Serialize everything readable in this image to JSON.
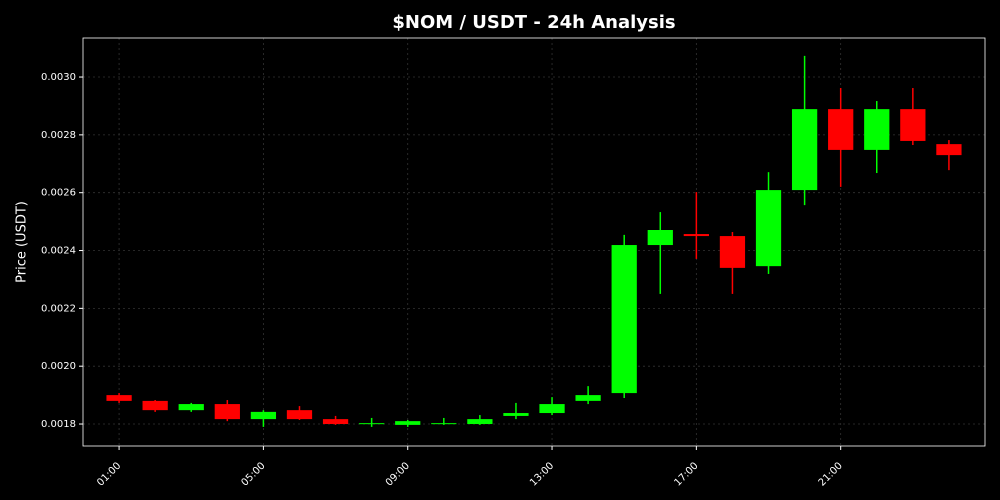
{
  "chart_data": {
    "type": "candlestick",
    "title": "$NOM / USDT - 24h Analysis",
    "y_label": "Price (USDT)",
    "x": [
      1,
      2,
      3,
      4,
      5,
      6,
      7,
      8,
      9,
      10,
      11,
      12,
      13,
      14,
      15,
      16,
      17,
      18,
      19,
      20,
      21,
      22,
      23,
      24
    ],
    "open": [
      0.0019,
      0.00188,
      0.001848,
      0.001869,
      0.001817,
      0.001848,
      0.001817,
      0.0018,
      0.001797,
      0.0018,
      0.0018,
      0.001828,
      0.001838,
      0.00188,
      0.001907,
      0.002419,
      0.002457,
      0.00245,
      0.002346,
      0.002609,
      0.002889,
      0.002748,
      0.002889,
      0.002768
    ],
    "high": [
      0.001907,
      0.001883,
      0.001873,
      0.001883,
      0.001848,
      0.001862,
      0.001828,
      0.001821,
      0.001814,
      0.001821,
      0.001831,
      0.001873,
      0.001893,
      0.001931,
      0.002454,
      0.002533,
      0.002602,
      0.002464,
      0.002671,
      0.003073,
      0.002962,
      0.002917,
      0.002962,
      0.002782
    ],
    "low": [
      0.001873,
      0.001842,
      0.001842,
      0.00181,
      0.00179,
      0.001814,
      0.001797,
      0.00179,
      0.00179,
      0.001797,
      0.001797,
      0.001817,
      0.001831,
      0.001869,
      0.00189,
      0.00225,
      0.002371,
      0.00225,
      0.002319,
      0.002557,
      0.00262,
      0.002668,
      0.002765,
      0.002678
    ],
    "close": [
      0.00188,
      0.001848,
      0.001869,
      0.001817,
      0.001842,
      0.001817,
      0.0018,
      0.001803,
      0.00181,
      0.001803,
      0.001817,
      0.001838,
      0.001869,
      0.0019,
      0.002419,
      0.002471,
      0.00245,
      0.00234,
      0.002609,
      0.002889,
      0.002748,
      0.002889,
      0.002779,
      0.00273
    ],
    "up_color": "#00ff00",
    "down_color": "#ff0000",
    "xlim": [
      0,
      25
    ],
    "xticks": [
      {
        "value": 1,
        "label": "01:00"
      },
      {
        "value": 5,
        "label": "05:00"
      },
      {
        "value": 9,
        "label": "09:00"
      },
      {
        "value": 13,
        "label": "13:00"
      },
      {
        "value": 17,
        "label": "17:00"
      },
      {
        "value": 21,
        "label": "21:00"
      }
    ],
    "ylim": [
      0.001724,
      0.003135
    ],
    "yticks": [
      0.0018,
      {
        "value": 0.002,
        "label": "0.0020"
      },
      0.0022,
      0.0024,
      0.0026,
      0.0028,
      {
        "value": 0.003,
        "label": "0.0030"
      }
    ],
    "grid": true
  }
}
